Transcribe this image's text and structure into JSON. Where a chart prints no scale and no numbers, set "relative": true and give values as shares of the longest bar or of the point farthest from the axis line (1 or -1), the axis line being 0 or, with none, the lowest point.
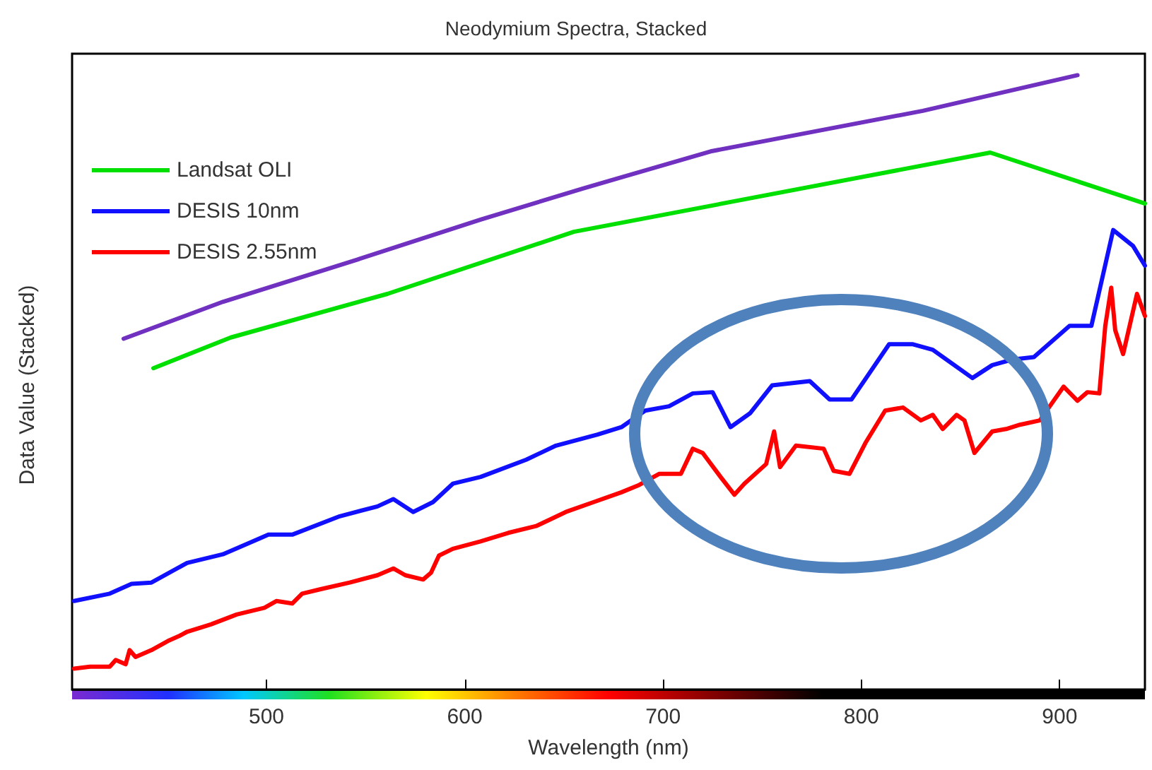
{
  "chart_data": {
    "type": "line",
    "title": "Neodymium Spectra, Stacked",
    "xlabel": "Wavelength (nm)",
    "ylabel": "Data Value (Stacked)",
    "xlim": [
      402,
      943
    ],
    "xticks": [
      500,
      600,
      700,
      800,
      900
    ],
    "relative": true,
    "grid": false,
    "legend": "top left",
    "marker": "none",
    "line_style": "solid",
    "series": [
      {
        "color": "#7030c0",
        "x": [
          428,
          478,
          546,
          608,
          659,
          724,
          831,
          909
        ],
        "values": [
          0.571,
          0.631,
          0.7,
          0.765,
          0.815,
          0.876,
          0.942,
          1
        ]
      },
      {
        "name": "Landsat OLI",
        "color": "#00e000",
        "x": [
          443,
          482,
          561,
          655,
          865,
          943
        ],
        "values": [
          0.523,
          0.573,
          0.644,
          0.745,
          0.874,
          0.791
        ]
      },
      {
        "name": "DESIS 10nm",
        "color": "#1010ff",
        "x": [
          403,
          421,
          432,
          442,
          460,
          478,
          501,
          513,
          537,
          556,
          564,
          574,
          584,
          594,
          608,
          631,
          646,
          667,
          679,
          691,
          703,
          715,
          725,
          734,
          744,
          755,
          774,
          784,
          795,
          814,
          826,
          836,
          856,
          866,
          876,
          887,
          905,
          916,
          927,
          937,
          943
        ],
        "values": [
          0.144,
          0.156,
          0.172,
          0.174,
          0.206,
          0.22,
          0.252,
          0.252,
          0.282,
          0.298,
          0.31,
          0.289,
          0.305,
          0.335,
          0.346,
          0.374,
          0.397,
          0.415,
          0.427,
          0.454,
          0.461,
          0.482,
          0.484,
          0.427,
          0.45,
          0.495,
          0.502,
          0.472,
          0.472,
          0.562,
          0.562,
          0.553,
          0.507,
          0.528,
          0.537,
          0.541,
          0.592,
          0.592,
          0.748,
          0.722,
          0.69
        ]
      },
      {
        "name": "DESIS 2.55nm",
        "color": "#ff0000",
        "x": [
          403,
          411,
          421,
          424,
          429,
          431,
          434,
          442,
          451,
          456,
          460,
          472,
          485,
          499,
          505,
          513,
          518,
          527,
          542,
          556,
          564,
          570,
          579,
          583,
          587,
          594,
          608,
          622,
          636,
          651,
          665,
          679,
          688,
          698,
          709,
          715,
          720,
          729,
          736,
          741,
          752,
          756,
          759,
          767,
          781,
          786,
          794,
          802,
          812,
          821,
          830,
          836,
          841,
          848,
          852,
          857,
          866,
          873,
          880,
          890,
          895,
          902,
          909,
          914,
          920,
          923,
          926,
          928,
          932,
          939,
          943
        ],
        "values": [
          0.034,
          0.037,
          0.037,
          0.048,
          0.041,
          0.064,
          0.053,
          0.064,
          0.08,
          0.087,
          0.094,
          0.106,
          0.122,
          0.133,
          0.144,
          0.14,
          0.156,
          0.163,
          0.174,
          0.186,
          0.197,
          0.186,
          0.179,
          0.19,
          0.218,
          0.229,
          0.241,
          0.255,
          0.266,
          0.289,
          0.305,
          0.321,
          0.333,
          0.351,
          0.351,
          0.392,
          0.385,
          0.346,
          0.317,
          0.335,
          0.367,
          0.42,
          0.362,
          0.397,
          0.392,
          0.356,
          0.351,
          0.401,
          0.454,
          0.459,
          0.438,
          0.447,
          0.424,
          0.447,
          0.438,
          0.385,
          0.42,
          0.424,
          0.431,
          0.438,
          0.461,
          0.493,
          0.47,
          0.484,
          0.482,
          0.592,
          0.654,
          0.585,
          0.546,
          0.644,
          0.608
        ]
      }
    ]
  }
}
